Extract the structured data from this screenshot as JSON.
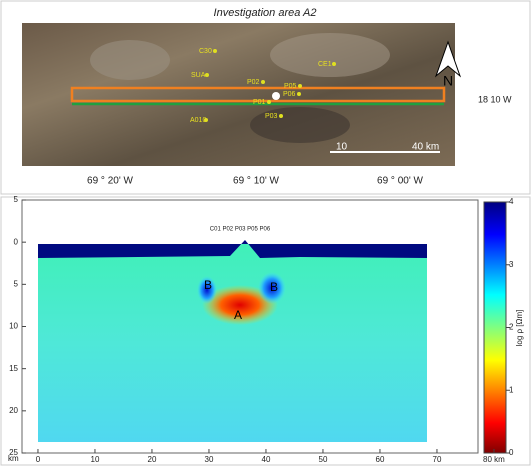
{
  "map": {
    "title": "Investigation area A2",
    "sites": [
      "C30",
      "CE1",
      "SUA",
      "P02",
      "P05",
      "P06",
      "P01",
      "P03",
      "A010"
    ],
    "scale_labels": [
      "10",
      "40 km"
    ],
    "north": "N",
    "lat_label": "18 10 W",
    "lon_labels": [
      "69 ° 20' W",
      "69 ° 10' W",
      "69 ° 00' W"
    ]
  },
  "section": {
    "stations": "C01 P02 P03      P05 P06",
    "anomalies": [
      "B",
      "A",
      "B"
    ],
    "y_label": "km",
    "xlim": [
      -2.8,
      77.2
    ],
    "xticks": [
      0,
      10,
      20,
      30,
      40,
      50,
      60,
      70,
      {
        "value": 80,
        "label": "80 km"
      }
    ],
    "ylim": [
      -5,
      25
    ],
    "yticks": [
      {
        "value": -5,
        "label": "5"
      },
      0,
      5,
      10,
      15,
      20,
      25
    ],
    "colorbar": {
      "label": "log ρ [Ωm]",
      "lim": [
        0,
        4
      ],
      "ticks": [
        0,
        1,
        2,
        3,
        4
      ]
    }
  }
}
